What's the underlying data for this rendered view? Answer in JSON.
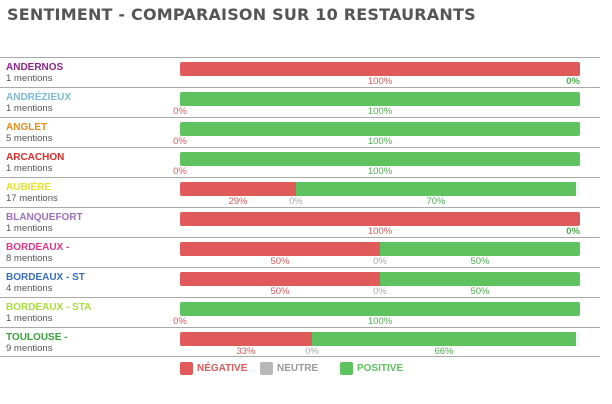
{
  "title": "SENTIMENT - COMPARAISON SUR 10 RESTAURANTS",
  "colors": {
    "negative": "#e05a5a",
    "neutral": "#b8b8b8",
    "positive": "#5ec25e"
  },
  "legend": [
    {
      "key": "negative",
      "label": "NÉGATIVE"
    },
    {
      "key": "neutral",
      "label": "NEUTRE"
    },
    {
      "key": "positive",
      "label": "POSITIVE"
    }
  ],
  "chart_data": {
    "type": "bar",
    "orientation": "horizontal",
    "stacked": true,
    "title": "SENTIMENT - COMPARAISON SUR 10 RESTAURANTS",
    "xlim": [
      0,
      100
    ],
    "unit": "%",
    "series_names": [
      "NÉGATIVE",
      "NEUTRE",
      "POSITIVE"
    ],
    "rows": [
      {
        "name": "ANDERNOS",
        "mentions": "1 mentions",
        "name_color": "#8e2490",
        "values": [
          100,
          0,
          0
        ],
        "labels": [
          "100%",
          null,
          "0%"
        ]
      },
      {
        "name": "ANDRÉZIEUX",
        "mentions": "1 mentions",
        "name_color": "#7ab8de",
        "values": [
          0,
          0,
          100
        ],
        "labels": [
          "0%",
          null,
          "100%"
        ]
      },
      {
        "name": "ANGLET",
        "mentions": "5 mentions",
        "name_color": "#ee8a1c",
        "values": [
          0,
          0,
          100
        ],
        "labels": [
          "0%",
          null,
          "100%"
        ]
      },
      {
        "name": "ARCACHON",
        "mentions": "1 mentions",
        "name_color": "#e02a2a",
        "values": [
          0,
          0,
          100
        ],
        "labels": [
          "0%",
          null,
          "100%"
        ]
      },
      {
        "name": "AUBIÈRE",
        "mentions": "17 mentions",
        "name_color": "#e6e32a",
        "values": [
          29,
          0,
          70
        ],
        "labels": [
          "29%",
          "0%",
          "70%"
        ]
      },
      {
        "name": "BLANQUEFORT",
        "mentions": "1 mentions",
        "name_color": "#9c6fc0",
        "values": [
          100,
          0,
          0
        ],
        "labels": [
          "100%",
          null,
          "0%"
        ]
      },
      {
        "name": "BORDEAUX -",
        "mentions": "8 mentions",
        "name_color": "#e0378a",
        "values": [
          50,
          0,
          50
        ],
        "labels": [
          "50%",
          "0%",
          "50%"
        ]
      },
      {
        "name": "BORDEAUX - ST",
        "mentions": "4 mentions",
        "name_color": "#3a6fc0",
        "values": [
          50,
          0,
          50
        ],
        "labels": [
          "50%",
          "0%",
          "50%"
        ]
      },
      {
        "name": "BORDEAUX - STA",
        "mentions": "1 mentions",
        "name_color": "#a8e03a",
        "values": [
          0,
          0,
          100
        ],
        "labels": [
          "0%",
          null,
          "100%"
        ]
      },
      {
        "name": "TOULOUSE -",
        "mentions": "9 mentions",
        "name_color": "#3aa23a",
        "values": [
          33,
          0,
          66
        ],
        "labels": [
          "33%",
          "0%",
          "66%"
        ]
      }
    ]
  }
}
